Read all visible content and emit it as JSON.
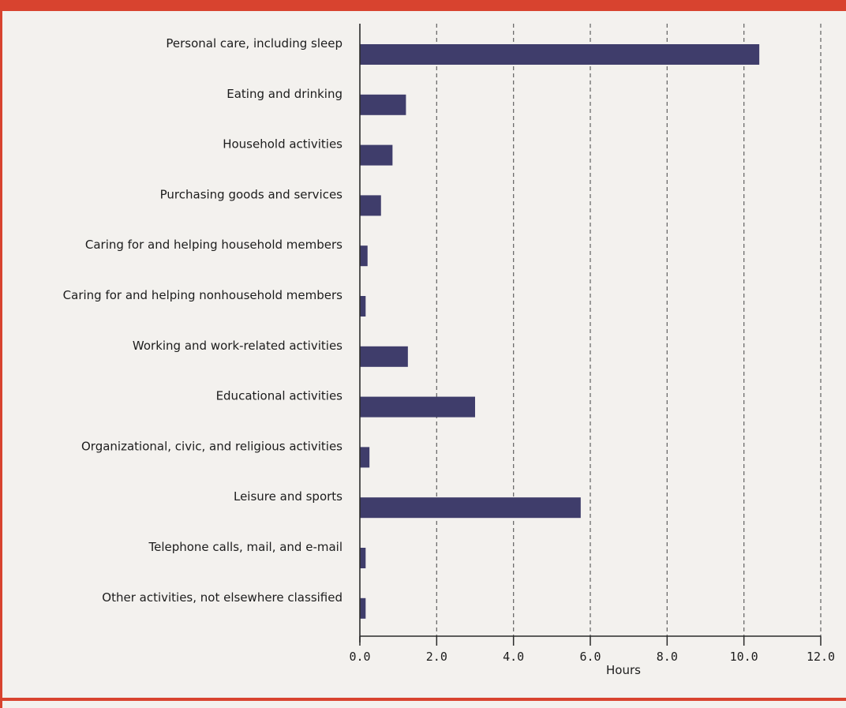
{
  "chart_data": {
    "type": "bar",
    "orientation": "horizontal",
    "categories": [
      "Personal care, including sleep",
      "Eating and drinking",
      "Household activities",
      "Purchasing goods and services",
      "Caring for and helping household members",
      "Caring for and helping nonhousehold members",
      "Working and work-related activities",
      "Educational activities",
      "Organizational, civic, and religious activities",
      "Leisure and sports",
      "Telephone calls, mail, and e-mail",
      "Other activities, not elsewhere classified"
    ],
    "values": [
      10.4,
      1.2,
      0.85,
      0.55,
      0.2,
      0.15,
      1.25,
      3.0,
      0.25,
      5.75,
      0.15,
      0.15
    ],
    "xlabel": "Hours",
    "xlim": [
      0,
      12
    ],
    "ticks": [
      "0.0",
      "2.0",
      "4.0",
      "6.0",
      "8.0",
      "10.0",
      "12.0"
    ],
    "grid": "vertical dashed",
    "bar_color": "#3f3d6b"
  },
  "colors": {
    "frame": "#d8432f",
    "bar": "#3f3d6b",
    "grid": "#6b6b6b",
    "axis": "#2a2a2a"
  }
}
